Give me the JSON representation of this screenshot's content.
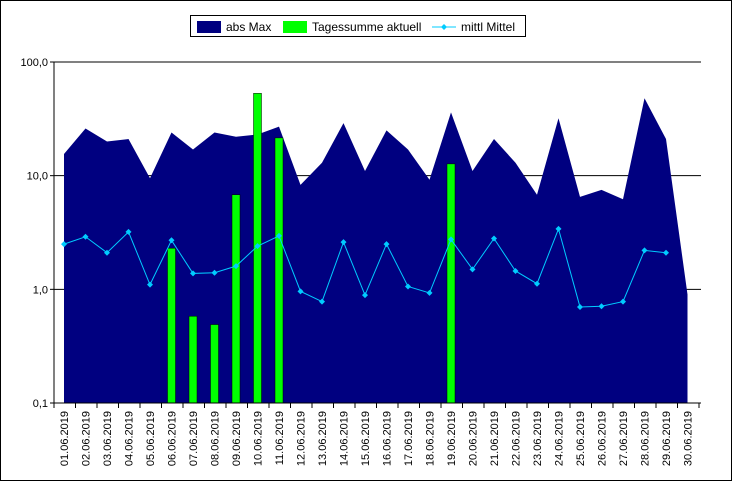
{
  "chart_data": {
    "type": "bar",
    "yscale": "log",
    "ylim": [
      0.1,
      100
    ],
    "y_ticks": [
      "0,1",
      "1,0",
      "10,0",
      "100,0"
    ],
    "grid": "horizontal gridlines at decades",
    "legend_placement": "top",
    "categories": [
      "01.06.2019",
      "02.06.2019",
      "03.06.2019",
      "04.06.2019",
      "05.06.2019",
      "06.06.2019",
      "07.06.2019",
      "08.06.2019",
      "09.06.2019",
      "10.06.2019",
      "11.06.2019",
      "12.06.2019",
      "13.06.2019",
      "14.06.2019",
      "15.06.2019",
      "16.06.2019",
      "17.06.2019",
      "18.06.2019",
      "19.06.2019",
      "20.06.2019",
      "21.06.2019",
      "22.06.2019",
      "23.06.2019",
      "24.06.2019",
      "25.06.2019",
      "26.06.2019",
      "27.06.2019",
      "28.06.2019",
      "29.06.2019",
      "30.06.2019"
    ],
    "series": [
      {
        "name": "abs Max",
        "kind": "area",
        "color": "#000080",
        "values": [
          15.5,
          26,
          20,
          21,
          9.5,
          24,
          17,
          24,
          22,
          23,
          27,
          8.3,
          13,
          29,
          11,
          25,
          17,
          9.2,
          36,
          11,
          21,
          13,
          6.8,
          32,
          6.5,
          7.5,
          6.2,
          48,
          21,
          0.9
        ]
      },
      {
        "name": "Tagessumme aktuell",
        "kind": "bar",
        "color": "#00ff00",
        "values": [
          null,
          null,
          null,
          null,
          null,
          2.3,
          0.58,
          0.49,
          6.8,
          53,
          21.5,
          null,
          null,
          null,
          null,
          null,
          null,
          null,
          12.7,
          null,
          null,
          null,
          null,
          null,
          null,
          null,
          null,
          null,
          null,
          null
        ]
      },
      {
        "name": "mittl Mittel",
        "kind": "line",
        "color": "#00ccff",
        "values": [
          2.5,
          2.9,
          2.1,
          3.2,
          1.1,
          2.7,
          1.38,
          1.4,
          1.6,
          2.4,
          2.95,
          0.96,
          0.78,
          2.6,
          0.89,
          2.5,
          1.06,
          0.93,
          2.75,
          1.5,
          2.8,
          1.45,
          1.12,
          3.4,
          0.7,
          0.71,
          0.78,
          2.2,
          2.1,
          null
        ]
      }
    ]
  }
}
